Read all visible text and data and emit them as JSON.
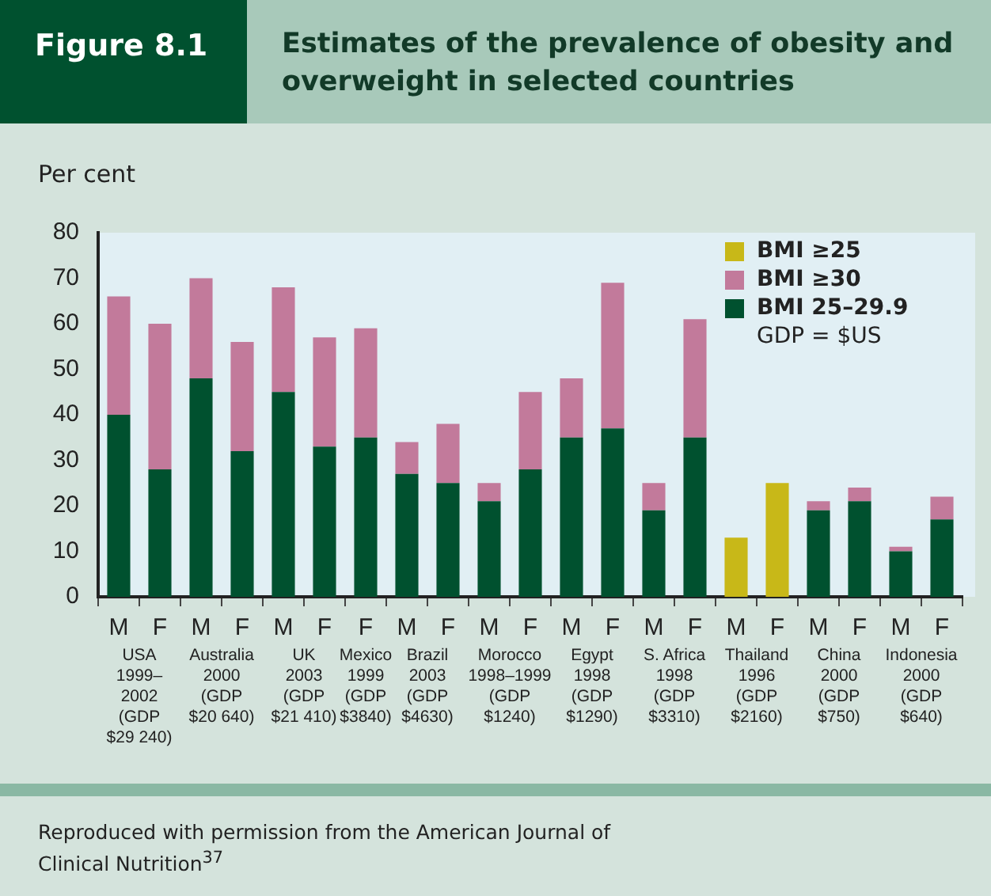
{
  "chart_data": {
    "type": "bar",
    "stacked": true,
    "title": "Estimates of the prevalence of obesity and overweight in selected countries",
    "ylabel": "Per cent",
    "categories": [
      "M\nUSA\n1999–\n2002\n(GDP\n$29 240)",
      "F",
      "M\nAustralia\n2000\n(GDP\n$20 640)",
      "F",
      "M\nUK\n2003\n(GDP\n$21 410)",
      "F",
      "F\nMexico\n1999\n(GDP\n$3840)",
      "M\nBrazil\n2003\n(GDP\n$4630)",
      "F",
      "M\nMorocco\n1998–1999\n(GDP\n$1240)",
      "F",
      "M\nEgypt\n1998\n(GDP\n$1290)",
      "F",
      "M\nS. Africa\n1998\n(GDP\n$3310)",
      "F",
      "M\nThailand\n1996\n(GDP\n$2160)",
      "F",
      "M\nChina\n2000\n(GDP\n$750)",
      "F",
      "M\nIndonesia\n2000\n(GDP\n$640)",
      "F"
    ],
    "series": [
      {
        "name": "BMI 25–29.9",
        "color": "#00512f",
        "values": [
          40,
          28,
          48,
          32,
          45,
          33,
          35,
          27,
          25,
          21,
          28,
          35,
          37,
          19,
          35,
          null,
          null,
          19,
          21,
          10,
          17
        ]
      },
      {
        "name": "BMI ≥30",
        "color": "#c27a9b",
        "values": [
          26,
          32,
          22,
          24,
          23,
          24,
          24,
          7,
          13,
          4,
          17,
          13,
          32,
          6,
          26,
          null,
          null,
          2,
          3,
          1,
          5
        ]
      },
      {
        "name": "BMI ≥25",
        "color": "#c8b818",
        "values": [
          null,
          null,
          null,
          null,
          null,
          null,
          null,
          null,
          null,
          null,
          null,
          null,
          null,
          null,
          null,
          13,
          25,
          null,
          null,
          null,
          null
        ]
      }
    ],
    "ylim": [
      0,
      80
    ],
    "yticks": [
      0,
      10,
      20,
      30,
      40,
      50,
      60,
      70,
      80
    ],
    "legend": "top right",
    "annotations": [
      "Figure 8.1",
      "GDP = $US",
      "Reproduced with permission from the American Journal of Clinical Nutrition$^{37}$"
    ]
  }
}
